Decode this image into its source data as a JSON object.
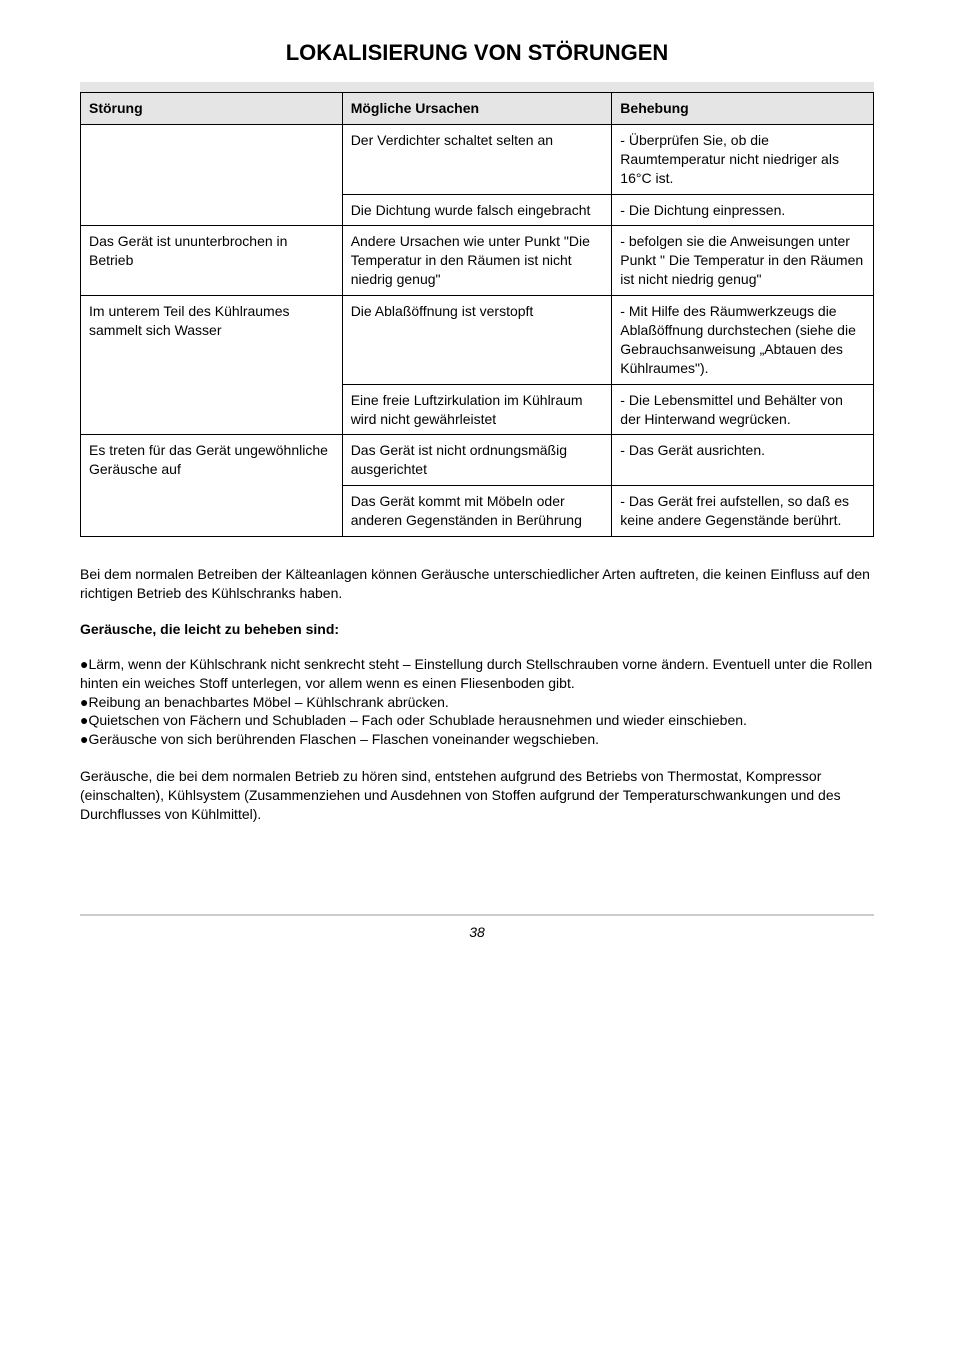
{
  "title": "LOKALISIERUNG VON STÖRUNGEN",
  "headers": {
    "c1": "Störung",
    "c2": "Mögliche Ursachen",
    "c3": "Behebung"
  },
  "rows": [
    {
      "span": 1,
      "c1": "",
      "c2": "Der Verdichter schaltet selten an",
      "c3": "- Überprüfen Sie, ob die Raumtemperatur nicht niedriger als 16°C ist."
    },
    {
      "span": 0,
      "c2": "Die Dichtung wurde falsch eingebracht",
      "c3": "- Die Dichtung einpressen."
    },
    {
      "span": 1,
      "c1": "Das Gerät ist ununterbrochen in Betrieb",
      "c2": "Andere Ursachen wie unter Punkt \"Die Temperatur in den Räumen ist nicht niedrig genug\"",
      "c3": "- befolgen sie die Anweisungen unter Punkt \" Die Temperatur in den Räumen ist nicht niedrig genug\""
    },
    {
      "span": 2,
      "c1": "Im unterem Teil des Kühlraumes sammelt sich Wasser",
      "c2": "Die Ablaßöffnung ist verstopft",
      "c3": "- Mit Hilfe des Räumwerkzeugs die Ablaßöffnung durchstechen (siehe die Gebrauchsanweisung „Abtauen des Kühlraumes\")."
    },
    {
      "span": 0,
      "c2": "Eine freie Luftzirkulation im Kühlraum wird nicht gewährleistet",
      "c3": "- Die Lebensmittel und Behälter von der Hinterwand wegrücken."
    },
    {
      "span": 2,
      "c1": "Es treten für das Gerät ungewöhnliche Geräusche auf",
      "c2": "Das Gerät ist nicht ordnungsmäßig ausgerichtet",
      "c3": "- Das Gerät ausrichten."
    },
    {
      "span": 0,
      "c2": "Das Gerät kommt mit Möbeln oder anderen Gegenständen in Berührung",
      "c3": "- Das Gerät frei aufstellen, so daß es keine andere Gegenstände berührt."
    }
  ],
  "para1": "Bei dem normalen Betreiben der Kälteanlagen können Geräusche unterschiedlicher Arten auftreten, die keinen Einfluss auf den richtigen Betrieb des Kühlschranks haben.",
  "subhead": "Geräusche, die leicht zu beheben sind:",
  "b1": "Lärm, wenn der Kühlschrank nicht senkrecht steht – Einstellung durch Stellschrauben vorne ändern. Eventuell unter die Rollen hinten ein weiches Stoff unterlegen, vor allem wenn es einen Fliesenboden gibt.",
  "b2": "Reibung an benachbartes Möbel – Kühlschrank abrücken.",
  "b3": "Quietschen von Fächern und Schubladen – Fach oder Schublade herausnehmen und wieder einschieben.",
  "b4": "Geräusche von sich berührenden Flaschen – Flaschen voneinander wegschieben.",
  "para2": "Geräusche, die bei dem normalen Betrieb zu hören sind, entstehen aufgrund des Betriebs von Thermostat, Kompressor (einschalten), Kühlsystem (Zusammenziehen und Ausdehnen von Stoffen aufgrund der Temperaturschwankungen und des Durchflusses von Kühlmittel).",
  "pageNum": "38"
}
